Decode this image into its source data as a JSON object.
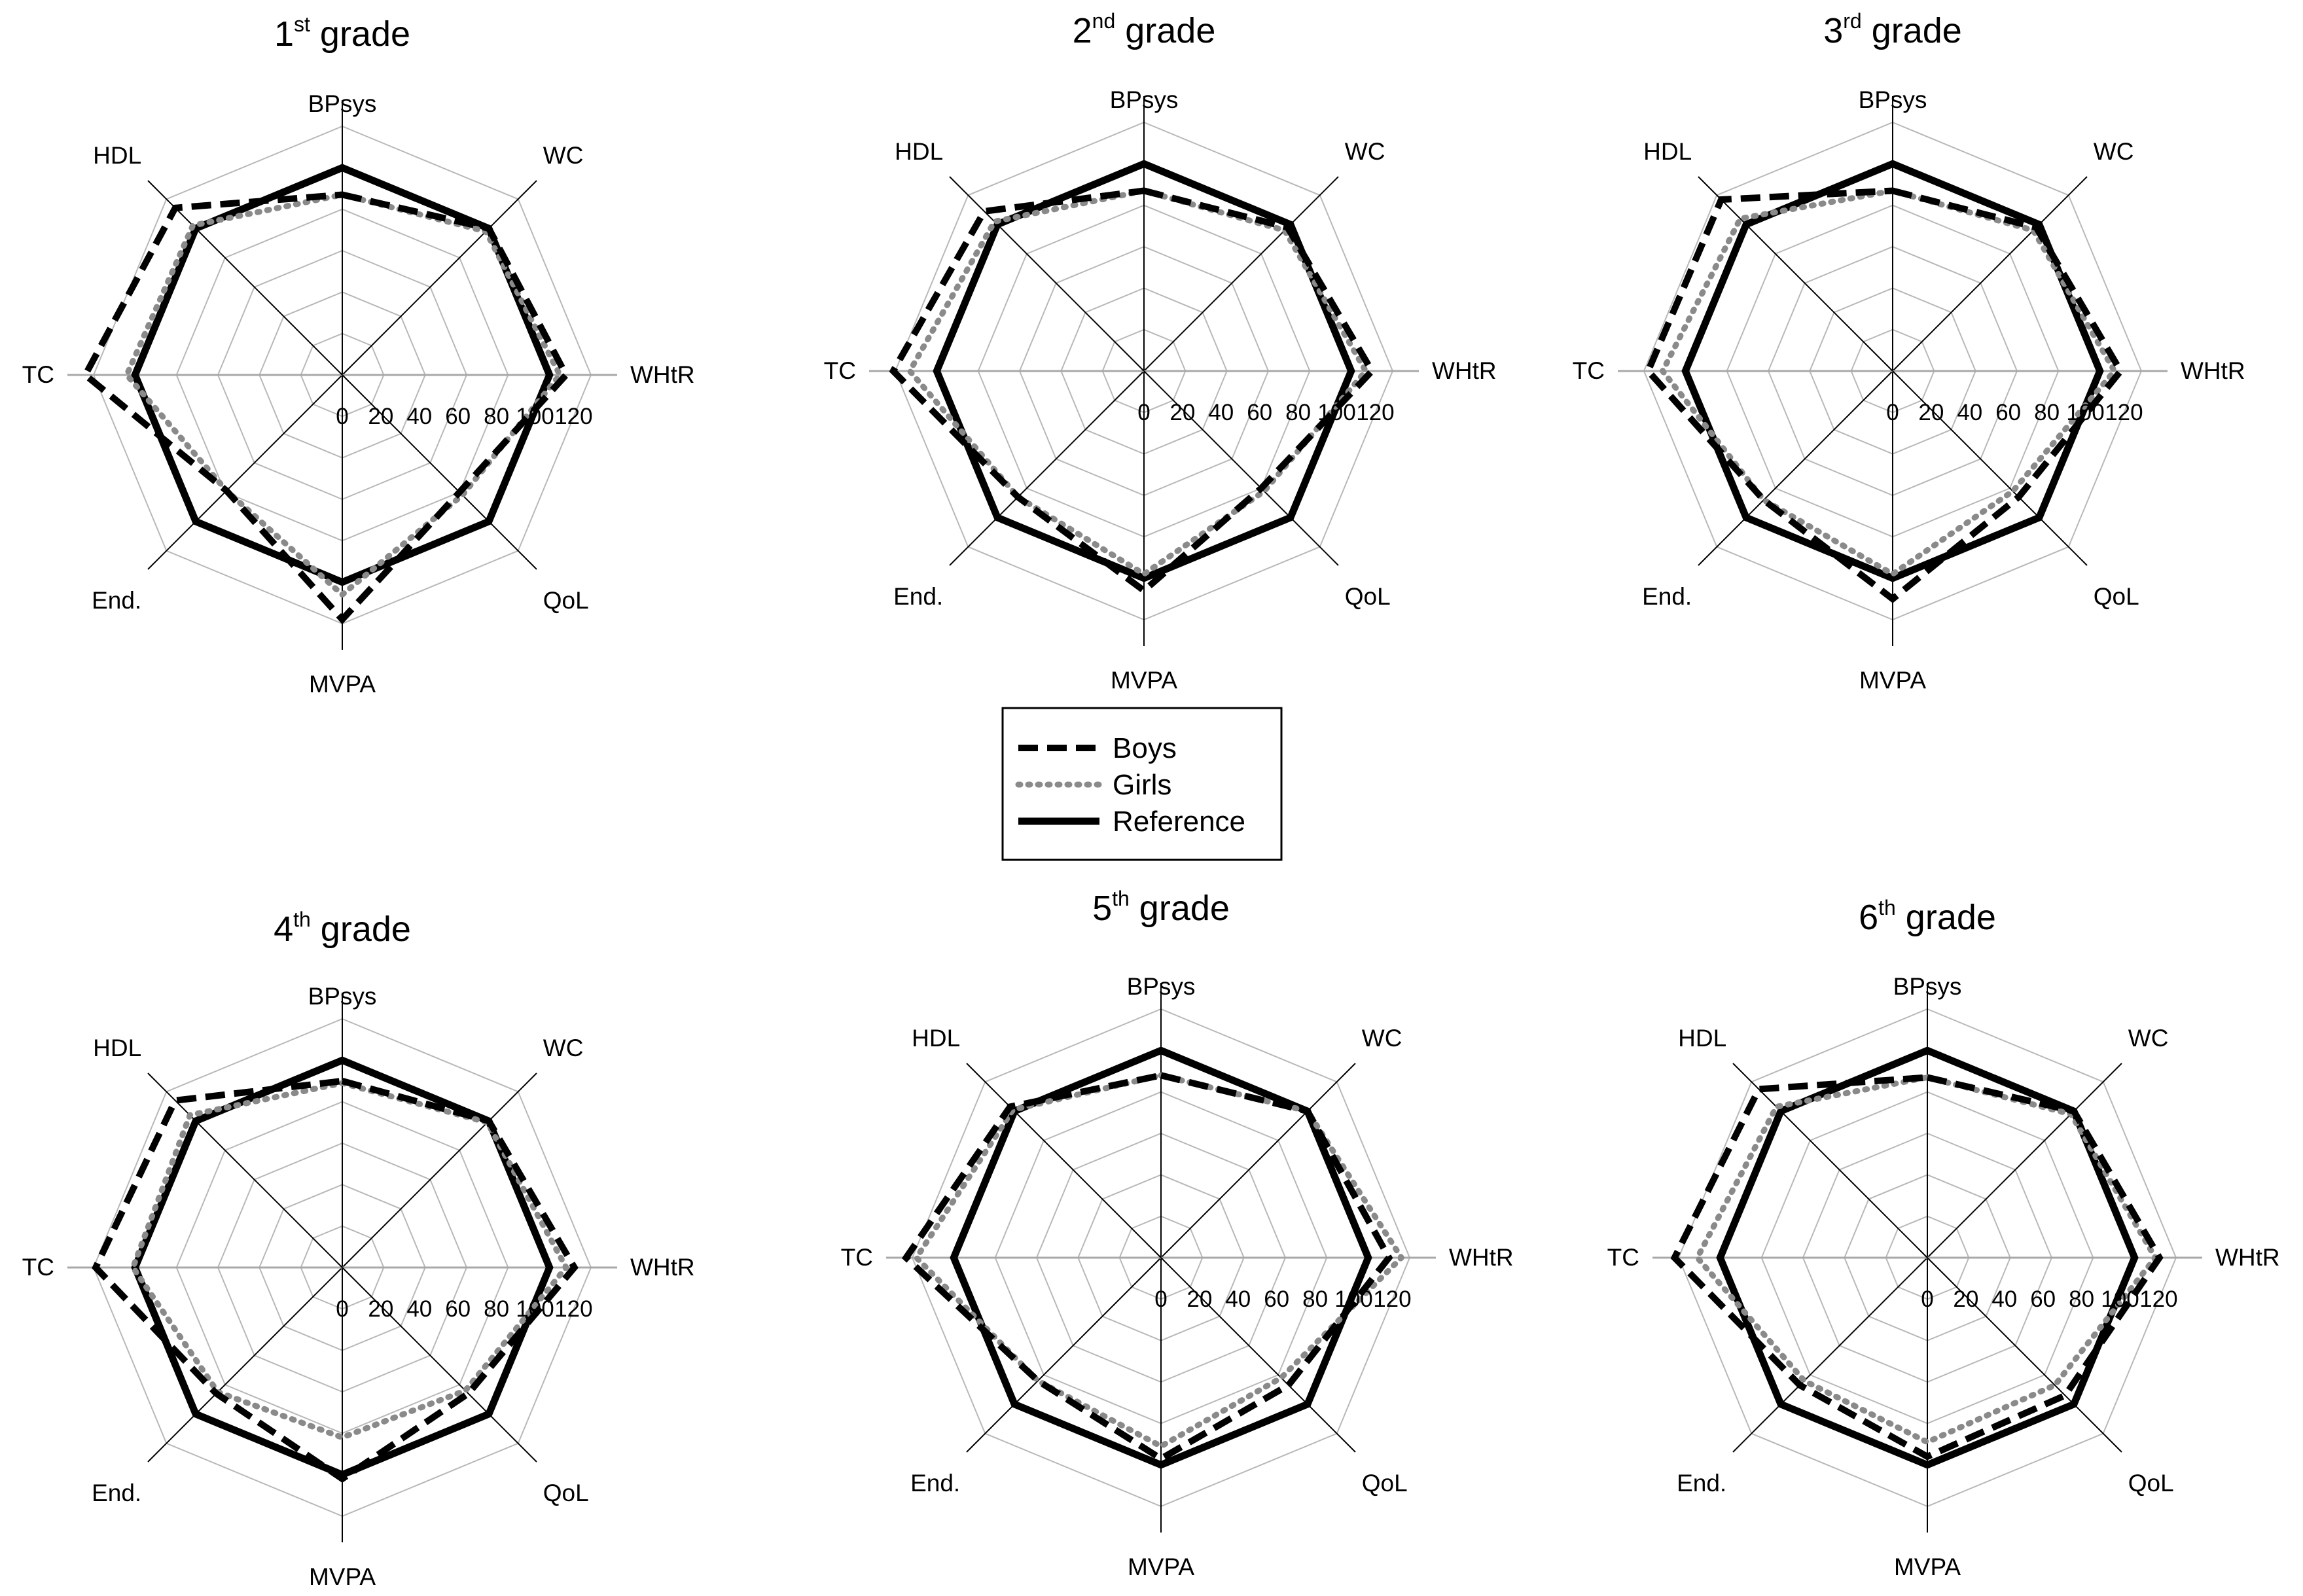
{
  "chart_data": [
    {
      "type": "radar",
      "title": {
        "prefix": "1",
        "sup": "st",
        "suffix": " grade"
      },
      "axes": [
        "BPsys",
        "WC",
        "WHtR",
        "QoL",
        "MVPA",
        "End.",
        "TC",
        "HDL"
      ],
      "ticks": [
        "0",
        "20",
        "40",
        "60",
        "80",
        "100",
        "120"
      ],
      "rlim": [
        0,
        120
      ],
      "series": [
        {
          "name": "Boys",
          "values": [
            87,
            100,
            108,
            80,
            118,
            79,
            124,
            114
          ]
        },
        {
          "name": "Girls",
          "values": [
            87,
            98,
            105,
            82,
            106,
            79,
            104,
            102
          ]
        },
        {
          "name": "Reference",
          "values": [
            100,
            100,
            100,
            100,
            100,
            100,
            100,
            100
          ]
        }
      ]
    },
    {
      "type": "radar",
      "title": {
        "prefix": "2",
        "sup": "nd",
        "suffix": " grade"
      },
      "axes": [
        "BPsys",
        "WC",
        "WHtR",
        "QoL",
        "MVPA",
        "End.",
        "TC",
        "HDL"
      ],
      "ticks": [
        "0",
        "20",
        "40",
        "60",
        "80",
        "100",
        "120"
      ],
      "rlim": [
        0,
        120
      ],
      "series": [
        {
          "name": "Boys",
          "values": [
            87,
            98,
            110,
            80,
            106,
            86,
            121,
            109
          ]
        },
        {
          "name": "Girls",
          "values": [
            87,
            96,
            107,
            82,
            98,
            86,
            113,
            102
          ]
        },
        {
          "name": "Reference",
          "values": [
            100,
            100,
            100,
            100,
            100,
            100,
            100,
            100
          ]
        }
      ]
    },
    {
      "type": "radar",
      "title": {
        "prefix": "3",
        "sup": "rd",
        "suffix": " grade"
      },
      "axes": [
        "BPsys",
        "WC",
        "WHtR",
        "QoL",
        "MVPA",
        "End.",
        "TC",
        "HDL"
      ],
      "ticks": [
        "0",
        "20",
        "40",
        "60",
        "80",
        "100",
        "120"
      ],
      "rlim": [
        0,
        120
      ],
      "series": [
        {
          "name": "Boys",
          "values": [
            87,
            98,
            110,
            86,
            110,
            88,
            118,
            117
          ]
        },
        {
          "name": "Girls",
          "values": [
            87,
            96,
            107,
            82,
            98,
            88,
            111,
            104
          ]
        },
        {
          "name": "Reference",
          "values": [
            100,
            100,
            100,
            100,
            100,
            100,
            100,
            100
          ]
        }
      ]
    },
    {
      "type": "radar",
      "title": {
        "prefix": "4",
        "sup": "th",
        "suffix": " grade"
      },
      "axes": [
        "BPsys",
        "WC",
        "WHtR",
        "QoL",
        "MVPA",
        "End.",
        "TC",
        "HDL"
      ],
      "ticks": [
        "0",
        "20",
        "40",
        "60",
        "80",
        "100",
        "120"
      ],
      "rlim": [
        0,
        120
      ],
      "series": [
        {
          "name": "Boys",
          "values": [
            90,
            100,
            112,
            86,
            102,
            86,
            119,
            114
          ]
        },
        {
          "name": "Girls",
          "values": [
            89,
            99,
            108,
            84,
            82,
            85,
            101,
            104
          ]
        },
        {
          "name": "Reference",
          "values": [
            100,
            100,
            100,
            100,
            100,
            100,
            100,
            100
          ]
        }
      ]
    },
    {
      "type": "radar",
      "title": {
        "prefix": "5",
        "sup": "th",
        "suffix": " grade"
      },
      "axes": [
        "BPsys",
        "WC",
        "WHtR",
        "QoL",
        "MVPA",
        "End.",
        "TC",
        "HDL"
      ],
      "ticks": [
        "0",
        "20",
        "40",
        "60",
        "80",
        "100",
        "120"
      ],
      "rlim": [
        0,
        120
      ],
      "series": [
        {
          "name": "Boys",
          "values": [
            88,
            100,
            110,
            87,
            97,
            84,
            123,
            103
          ]
        },
        {
          "name": "Girls",
          "values": [
            88,
            100,
            116,
            82,
            91,
            84,
            118,
            101
          ]
        },
        {
          "name": "Reference",
          "values": [
            100,
            100,
            100,
            100,
            100,
            100,
            100,
            100
          ]
        }
      ]
    },
    {
      "type": "radar",
      "title": {
        "prefix": "6",
        "sup": "th",
        "suffix": " grade"
      },
      "axes": [
        "BPsys",
        "WC",
        "WHtR",
        "QoL",
        "MVPA",
        "End.",
        "TC",
        "HDL"
      ],
      "ticks": [
        "0",
        "20",
        "40",
        "60",
        "80",
        "100",
        "120"
      ],
      "rlim": [
        0,
        120
      ],
      "series": [
        {
          "name": "Boys",
          "values": [
            87,
            100,
            112,
            94,
            96,
            87,
            122,
            115
          ]
        },
        {
          "name": "Girls",
          "values": [
            87,
            98,
            110,
            87,
            89,
            84,
            111,
            103
          ]
        },
        {
          "name": "Reference",
          "values": [
            100,
            100,
            100,
            100,
            100,
            100,
            100,
            100
          ]
        }
      ]
    }
  ],
  "legend": {
    "items": [
      {
        "label": "Boys",
        "style": "dashed",
        "color": "#000000"
      },
      {
        "label": "Girls",
        "style": "dotted",
        "color": "#8a8a8a"
      },
      {
        "label": "Reference",
        "style": "solid",
        "color": "#000000"
      }
    ]
  }
}
